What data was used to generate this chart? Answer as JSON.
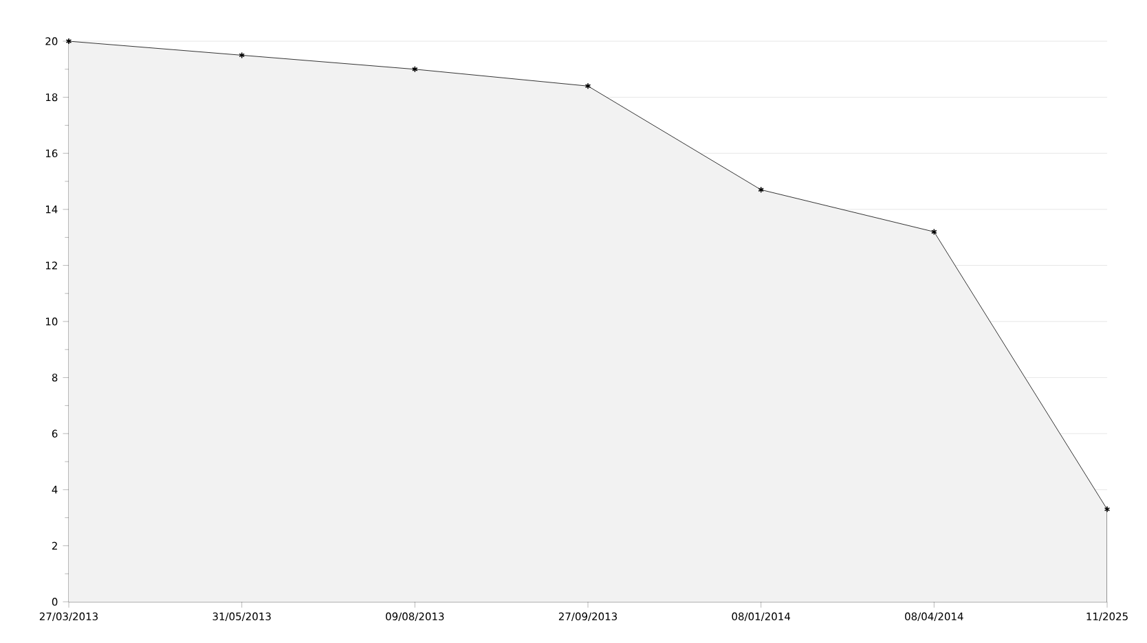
{
  "chart_data": {
    "type": "area",
    "categories": [
      "27/03/2013",
      "31/05/2013",
      "09/08/2013",
      "27/09/2013",
      "08/01/2014",
      "08/04/2014",
      "11/2025"
    ],
    "values": [
      20,
      19.5,
      19.0,
      18.4,
      14.7,
      13.2,
      3.3
    ],
    "color": "#000000",
    "ylim": [
      0,
      20
    ],
    "yticks": [
      0,
      2,
      4,
      6,
      8,
      10,
      12,
      14,
      16,
      18,
      20
    ],
    "grid": "y",
    "marker": "cross",
    "line_style": "solid"
  }
}
